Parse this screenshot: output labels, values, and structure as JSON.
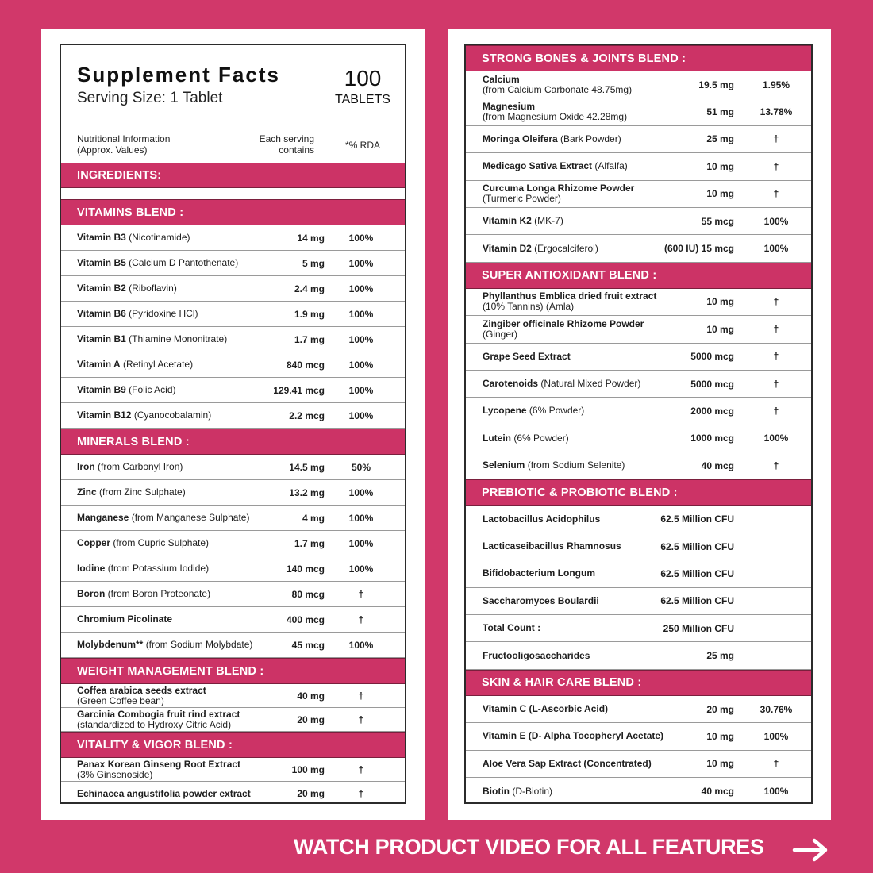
{
  "header": {
    "title": "Supplement Facts",
    "serving": "Serving Size: 1 Tablet",
    "count": "100",
    "count_unit": "TABLETS"
  },
  "info": {
    "label": [
      "Nutritional Information",
      "(Approx. Values)"
    ],
    "serving": [
      "Each serving",
      "contains"
    ],
    "rda": "*% RDA"
  },
  "ingredients_label": "INGREDIENTS:",
  "left_sections": [
    {
      "title": "VITAMINS BLEND :",
      "rows": [
        {
          "name": "Vitamin B3",
          "detail": "(Nicotinamide)",
          "amount": "14 mg",
          "rda": "100%"
        },
        {
          "name": "Vitamin B5",
          "detail": "(Calcium D Pantothenate)",
          "amount": "5 mg",
          "rda": "100%"
        },
        {
          "name": "Vitamin B2",
          "detail": "(Riboflavin)",
          "amount": "2.4 mg",
          "rda": "100%"
        },
        {
          "name": "Vitamin B6",
          "detail": "(Pyridoxine HCl)",
          "amount": "1.9 mg",
          "rda": "100%"
        },
        {
          "name": "Vitamin B1",
          "detail": "(Thiamine Mononitrate)",
          "amount": "1.7 mg",
          "rda": "100%"
        },
        {
          "name": "Vitamin A",
          "detail": "(Retinyl Acetate)",
          "amount": "840 mcg",
          "rda": "100%"
        },
        {
          "name": "Vitamin B9",
          "detail": "(Folic Acid)",
          "amount": "129.41 mcg",
          "rda": "100%"
        },
        {
          "name": "Vitamin B12",
          "detail": "(Cyanocobalamin)",
          "amount": "2.2 mcg",
          "rda": "100%"
        }
      ]
    },
    {
      "title": "MINERALS BLEND :",
      "rows": [
        {
          "name": "Iron",
          "detail": "(from Carbonyl Iron)",
          "amount": "14.5 mg",
          "rda": "50%"
        },
        {
          "name": "Zinc",
          "detail": "(from Zinc Sulphate)",
          "amount": "13.2 mg",
          "rda": "100%"
        },
        {
          "name": "Manganese",
          "detail": "(from Manganese Sulphate)",
          "amount": "4 mg",
          "rda": "100%"
        },
        {
          "name": "Copper",
          "detail": "(from Cupric Sulphate)",
          "amount": "1.7 mg",
          "rda": "100%"
        },
        {
          "name": "Iodine",
          "detail": "(from Potassium Iodide)",
          "amount": "140 mcg",
          "rda": "100%"
        },
        {
          "name": "Boron",
          "detail": "(from Boron Proteonate)",
          "amount": "80 mcg",
          "rda": "†"
        },
        {
          "name": "Chromium Picolinate",
          "amount": "400 mcg",
          "rda": "†"
        },
        {
          "name": "Molybdenum**",
          "detail": "(from Sodium Molybdate)",
          "amount": "45 mcg",
          "rda": "100%"
        }
      ]
    },
    {
      "title": "WEIGHT MANAGEMENT BLEND :",
      "rows": [
        {
          "name": "Coffea arabica seeds extract",
          "note": "(Green Coffee bean)",
          "amount": "40 mg",
          "rda": "†"
        },
        {
          "name": "Garcinia Combogia fruit rind extract",
          "note": "(standardized to Hydroxy Citric Acid)",
          "amount": "20 mg",
          "rda": "†"
        }
      ]
    },
    {
      "title": "VITALITY & VIGOR BLEND :",
      "rows": [
        {
          "name": "Panax Korean Ginseng Root Extract",
          "note": "(3% Ginsenoside)",
          "amount": "100 mg",
          "rda": "†"
        },
        {
          "name": "Echinacea angustifolia powder extract",
          "amount": "20 mg",
          "rda": "†"
        }
      ]
    }
  ],
  "right_sections": [
    {
      "title": "STRONG BONES & JOINTS BLEND :",
      "rows": [
        {
          "name": "Calcium",
          "note": "(from Calcium Carbonate 48.75mg)",
          "amount": "19.5 mg",
          "rda": "1.95%"
        },
        {
          "name": "Magnesium",
          "note": "(from Magnesium Oxide 42.28mg)",
          "amount": "51 mg",
          "rda": "13.78%"
        },
        {
          "name": "Moringa Oleifera",
          "detail": "(Bark Powder)",
          "amount": "25 mg",
          "rda": "†"
        },
        {
          "name": "Medicago Sativa Extract",
          "detail": "(Alfalfa)",
          "amount": "10 mg",
          "rda": "†"
        },
        {
          "name": "Curcuma Longa Rhizome Powder",
          "note": "(Turmeric Powder)",
          "amount": "10 mg",
          "rda": "†"
        },
        {
          "name": "Vitamin K2",
          "detail": "(MK-7)",
          "amount": "55 mcg",
          "rda": "100%"
        },
        {
          "name": "Vitamin D2",
          "detail": "(Ergocalciferol)",
          "amount": "(600 IU) 15 mcg",
          "rda": "100%"
        }
      ]
    },
    {
      "title": "SUPER ANTIOXIDANT BLEND :",
      "rows": [
        {
          "name": "Phyllanthus Emblica dried fruit extract",
          "note": "(10% Tannins) (Amla)",
          "amount": "10 mg",
          "rda": "†"
        },
        {
          "name": "Zingiber officinale Rhizome Powder",
          "note": "(Ginger)",
          "amount": "10 mg",
          "rda": "†"
        },
        {
          "name": "Grape Seed Extract",
          "amount": "5000 mcg",
          "rda": "†"
        },
        {
          "name": "Carotenoids",
          "detail": "(Natural Mixed Powder)",
          "amount": "5000 mcg",
          "rda": "†"
        },
        {
          "name": "Lycopene",
          "detail": "(6% Powder)",
          "amount": "2000 mcg",
          "rda": "†"
        },
        {
          "name": "Lutein",
          "detail": "(6% Powder)",
          "amount": "1000 mcg",
          "rda": "100%"
        },
        {
          "name": "Selenium",
          "detail": "(from Sodium Selenite)",
          "amount": "40 mcg",
          "rda": "†"
        }
      ]
    },
    {
      "title": "PREBIOTIC & PROBIOTIC BLEND :",
      "rows": [
        {
          "name": "Lactobacillus Acidophilus",
          "amount": "62.5 Million CFU"
        },
        {
          "name": "Lacticaseibacillus Rhamnosus",
          "amount": "62.5 Million CFU"
        },
        {
          "name": "Bifidobacterium Longum",
          "amount": "62.5 Million CFU"
        },
        {
          "name": "Saccharomyces Boulardii",
          "amount": "62.5 Million CFU"
        },
        {
          "name": "Total Count :",
          "amount": "250 Million CFU"
        },
        {
          "name": "Fructooligosaccharides",
          "amount": "25 mg"
        }
      ]
    },
    {
      "title": "SKIN & HAIR CARE BLEND :",
      "rows": [
        {
          "name": "Vitamin C (L-Ascorbic Acid)",
          "amount": "20 mg",
          "rda": "30.76%"
        },
        {
          "name": "Vitamin E (D- Alpha Tocopheryl Acetate)",
          "amount": "10 mg",
          "rda": "100%"
        },
        {
          "name": "Aloe Vera Sap Extract (Concentrated)",
          "amount": "10 mg",
          "rda": "†"
        },
        {
          "name": "Biotin",
          "detail": "(D-Biotin)",
          "amount": "40 mcg",
          "rda": "100%"
        }
      ]
    }
  ],
  "footer": "WATCH PRODUCT VIDEO FOR ALL FEATURES"
}
